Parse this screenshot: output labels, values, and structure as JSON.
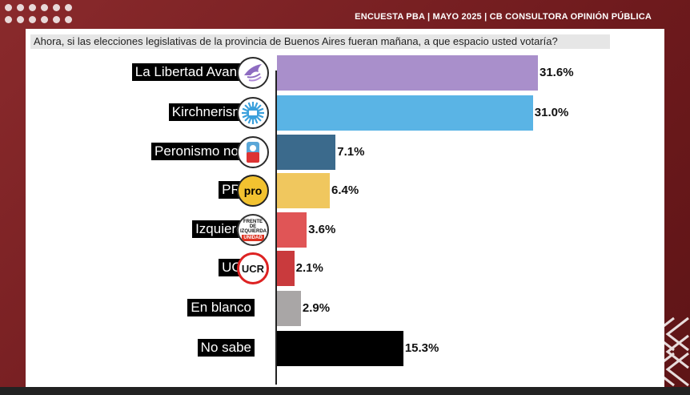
{
  "header": {
    "title": "ENCUESTA PBA | MAYO 2025 | CB CONSULTORA OPINIÓN PÚBLICA"
  },
  "question": "Ahora, si las elecciones legislativas de la provincia de Buenos Aires fueran mañana, a que espacio usted votaría?",
  "colors": {
    "background": "#7a1f22",
    "panel": "#ffffff"
  },
  "logos": {
    "pro": "pro",
    "izquierda_top": "FRENTE DE IZQUIERDA",
    "izquierda_bottom": "UNIDAD",
    "ucr": "UCR"
  },
  "chart_data": {
    "type": "bar",
    "orientation": "horizontal",
    "title": "",
    "xlabel": "",
    "ylabel": "",
    "categories": [
      "La Libertad Avanza",
      "Kirchnerismo",
      "Peronismo no K",
      "PRO",
      "Izquierda",
      "UCR",
      "En blanco",
      "No sabe"
    ],
    "values": [
      31.6,
      31.0,
      7.1,
      6.4,
      3.6,
      2.1,
      2.9,
      15.3
    ],
    "value_labels": [
      "31.6%",
      "31.0%",
      "7.1%",
      "6.4%",
      "3.6%",
      "2.1%",
      "2.9%",
      "15.3%"
    ],
    "colors": [
      "#a98fcb",
      "#5ab4e5",
      "#3b6a8c",
      "#f0c75e",
      "#e05556",
      "#c93a3d",
      "#a9a6a6",
      "#000000"
    ],
    "logo_icons": [
      "lla-eagle-logo-icon",
      "kirchnerismo-sun-logo-icon",
      "peronismo-logo-icon",
      "pro-logo-icon",
      "izquierda-logo-icon",
      "ucr-logo-icon",
      "",
      ""
    ],
    "xlim": [
      0,
      33
    ],
    "grid": false,
    "legend": "none"
  }
}
